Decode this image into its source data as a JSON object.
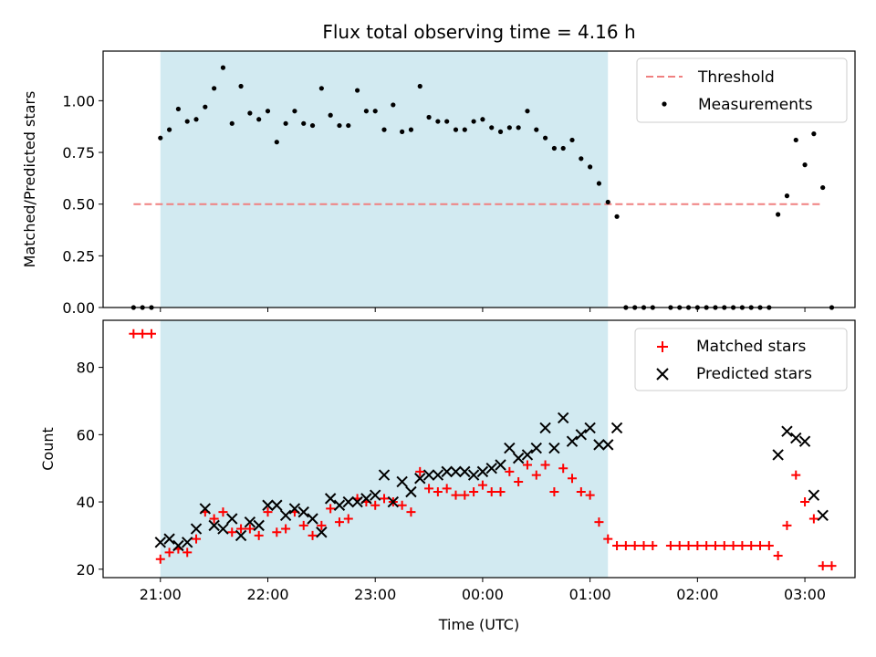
{
  "title": "Flux total observing time = 4.16 h",
  "colors": {
    "shade": "#add8e6",
    "threshold": "#f08080",
    "measurement": "#000000",
    "matched": "#ff0000",
    "predicted": "#000000"
  },
  "chart_data": [
    {
      "type": "scatter",
      "panel": "top",
      "ylabel": "Matched/Predicted stars",
      "ylim": [
        0,
        1.24
      ],
      "yticks": [
        0,
        0.25,
        0.5,
        0.75,
        1.0
      ],
      "yticklabels": [
        "0.00",
        "0.25",
        "0.50",
        "0.75",
        "1.00"
      ],
      "xlim": [
        "20:28",
        "03:28"
      ],
      "shaded_span": [
        "21:00",
        "01:10"
      ],
      "legend": [
        "Threshold",
        "Measurements"
      ],
      "legend_position": "upper right",
      "threshold": {
        "name": "Threshold",
        "y": 0.5,
        "x": [
          "20:45",
          "03:10"
        ]
      },
      "series": [
        {
          "name": "Measurements",
          "points": [
            [
              "20:45",
              0.0
            ],
            [
              "20:50",
              0.0
            ],
            [
              "20:55",
              0.0
            ],
            [
              "21:00",
              0.82
            ],
            [
              "21:05",
              0.86
            ],
            [
              "21:10",
              0.96
            ],
            [
              "21:15",
              0.9
            ],
            [
              "21:20",
              0.91
            ],
            [
              "21:25",
              0.97
            ],
            [
              "21:30",
              1.06
            ],
            [
              "21:35",
              1.16
            ],
            [
              "21:40",
              0.89
            ],
            [
              "21:45",
              1.07
            ],
            [
              "21:50",
              0.94
            ],
            [
              "21:55",
              0.91
            ],
            [
              "22:00",
              0.95
            ],
            [
              "22:05",
              0.8
            ],
            [
              "22:10",
              0.89
            ],
            [
              "22:15",
              0.95
            ],
            [
              "22:20",
              0.89
            ],
            [
              "22:25",
              0.88
            ],
            [
              "22:30",
              1.06
            ],
            [
              "22:35",
              0.93
            ],
            [
              "22:40",
              0.88
            ],
            [
              "22:45",
              0.88
            ],
            [
              "22:50",
              1.05
            ],
            [
              "22:55",
              0.95
            ],
            [
              "23:00",
              0.95
            ],
            [
              "23:05",
              0.86
            ],
            [
              "23:10",
              0.98
            ],
            [
              "23:15",
              0.85
            ],
            [
              "23:20",
              0.86
            ],
            [
              "23:25",
              1.07
            ],
            [
              "23:30",
              0.92
            ],
            [
              "23:35",
              0.9
            ],
            [
              "23:40",
              0.9
            ],
            [
              "23:45",
              0.86
            ],
            [
              "23:50",
              0.86
            ],
            [
              "23:55",
              0.9
            ],
            [
              "00:00",
              0.91
            ],
            [
              "00:05",
              0.87
            ],
            [
              "00:10",
              0.85
            ],
            [
              "00:15",
              0.87
            ],
            [
              "00:20",
              0.87
            ],
            [
              "00:25",
              0.95
            ],
            [
              "00:30",
              0.86
            ],
            [
              "00:35",
              0.82
            ],
            [
              "00:40",
              0.77
            ],
            [
              "00:45",
              0.77
            ],
            [
              "00:50",
              0.81
            ],
            [
              "00:55",
              0.72
            ],
            [
              "01:00",
              0.68
            ],
            [
              "01:05",
              0.6
            ],
            [
              "01:10",
              0.51
            ],
            [
              "01:15",
              0.44
            ],
            [
              "01:20",
              0.0
            ],
            [
              "01:25",
              0.0
            ],
            [
              "01:30",
              0.0
            ],
            [
              "01:35",
              0.0
            ],
            [
              "01:45",
              0.0
            ],
            [
              "01:50",
              0.0
            ],
            [
              "01:55",
              0.0
            ],
            [
              "02:00",
              0.0
            ],
            [
              "02:05",
              0.0
            ],
            [
              "02:10",
              0.0
            ],
            [
              "02:15",
              0.0
            ],
            [
              "02:20",
              0.0
            ],
            [
              "02:25",
              0.0
            ],
            [
              "02:30",
              0.0
            ],
            [
              "02:35",
              0.0
            ],
            [
              "02:40",
              0.0
            ],
            [
              "02:45",
              0.45
            ],
            [
              "02:50",
              0.54
            ],
            [
              "02:55",
              0.81
            ],
            [
              "03:00",
              0.69
            ],
            [
              "03:05",
              0.84
            ],
            [
              "03:10",
              0.58
            ],
            [
              "03:15",
              0.0
            ]
          ]
        }
      ]
    },
    {
      "type": "scatter",
      "panel": "bottom",
      "ylabel": "Count",
      "xlabel": "Time (UTC)",
      "ylim": [
        17.5,
        94
      ],
      "yticks": [
        20,
        40,
        60,
        80
      ],
      "yticklabels": [
        "20",
        "40",
        "60",
        "80"
      ],
      "xlim": [
        "20:28",
        "03:28"
      ],
      "xticks": [
        "21:00",
        "22:00",
        "23:00",
        "00:00",
        "01:00",
        "02:00",
        "03:00"
      ],
      "shaded_span": [
        "21:00",
        "01:10"
      ],
      "legend": [
        "Matched stars",
        "Predicted stars"
      ],
      "legend_position": "upper right",
      "series": [
        {
          "name": "Matched stars",
          "marker": "plus",
          "points": [
            [
              "20:45",
              90
            ],
            [
              "20:50",
              90
            ],
            [
              "20:55",
              90
            ],
            [
              "21:00",
              23
            ],
            [
              "21:05",
              25
            ],
            [
              "21:10",
              26
            ],
            [
              "21:15",
              25
            ],
            [
              "21:20",
              29
            ],
            [
              "21:25",
              37
            ],
            [
              "21:30",
              35
            ],
            [
              "21:35",
              37
            ],
            [
              "21:40",
              31
            ],
            [
              "21:45",
              32
            ],
            [
              "21:50",
              32
            ],
            [
              "21:55",
              30
            ],
            [
              "22:00",
              37
            ],
            [
              "22:05",
              31
            ],
            [
              "22:10",
              32
            ],
            [
              "22:15",
              37
            ],
            [
              "22:20",
              33
            ],
            [
              "22:25",
              30
            ],
            [
              "22:30",
              33
            ],
            [
              "22:35",
              38
            ],
            [
              "22:40",
              34
            ],
            [
              "22:45",
              35
            ],
            [
              "22:50",
              41
            ],
            [
              "22:55",
              40
            ],
            [
              "23:00",
              39
            ],
            [
              "23:05",
              41
            ],
            [
              "23:10",
              40
            ],
            [
              "23:15",
              39
            ],
            [
              "23:20",
              37
            ],
            [
              "23:25",
              49
            ],
            [
              "23:30",
              44
            ],
            [
              "23:35",
              43
            ],
            [
              "23:40",
              44
            ],
            [
              "23:45",
              42
            ],
            [
              "23:50",
              42
            ],
            [
              "23:55",
              43
            ],
            [
              "00:00",
              45
            ],
            [
              "00:05",
              43
            ],
            [
              "00:10",
              43
            ],
            [
              "00:15",
              49
            ],
            [
              "00:20",
              46
            ],
            [
              "00:25",
              51
            ],
            [
              "00:30",
              48
            ],
            [
              "00:35",
              51
            ],
            [
              "00:40",
              43
            ],
            [
              "00:45",
              50
            ],
            [
              "00:50",
              47
            ],
            [
              "00:55",
              43
            ],
            [
              "01:00",
              42
            ],
            [
              "01:05",
              34
            ],
            [
              "01:10",
              29
            ],
            [
              "01:15",
              27
            ],
            [
              "01:20",
              27
            ],
            [
              "01:25",
              27
            ],
            [
              "01:30",
              27
            ],
            [
              "01:35",
              27
            ],
            [
              "01:45",
              27
            ],
            [
              "01:50",
              27
            ],
            [
              "01:55",
              27
            ],
            [
              "02:00",
              27
            ],
            [
              "02:05",
              27
            ],
            [
              "02:10",
              27
            ],
            [
              "02:15",
              27
            ],
            [
              "02:20",
              27
            ],
            [
              "02:25",
              27
            ],
            [
              "02:30",
              27
            ],
            [
              "02:35",
              27
            ],
            [
              "02:40",
              27
            ],
            [
              "02:45",
              24
            ],
            [
              "02:50",
              33
            ],
            [
              "02:55",
              48
            ],
            [
              "03:00",
              40
            ],
            [
              "03:05",
              35
            ],
            [
              "03:10",
              21
            ],
            [
              "03:15",
              21
            ]
          ]
        },
        {
          "name": "Predicted stars",
          "marker": "x",
          "points": [
            [
              "21:00",
              28
            ],
            [
              "21:05",
              29
            ],
            [
              "21:10",
              27
            ],
            [
              "21:15",
              28
            ],
            [
              "21:20",
              32
            ],
            [
              "21:25",
              38
            ],
            [
              "21:30",
              33
            ],
            [
              "21:35",
              32
            ],
            [
              "21:40",
              35
            ],
            [
              "21:45",
              30
            ],
            [
              "21:50",
              34
            ],
            [
              "21:55",
              33
            ],
            [
              "22:00",
              39
            ],
            [
              "22:05",
              39
            ],
            [
              "22:10",
              36
            ],
            [
              "22:15",
              38
            ],
            [
              "22:20",
              37
            ],
            [
              "22:25",
              35
            ],
            [
              "22:30",
              31
            ],
            [
              "22:35",
              41
            ],
            [
              "22:40",
              39
            ],
            [
              "22:45",
              40
            ],
            [
              "22:50",
              40
            ],
            [
              "22:55",
              41
            ],
            [
              "23:00",
              42
            ],
            [
              "23:05",
              48
            ],
            [
              "23:10",
              40
            ],
            [
              "23:15",
              46
            ],
            [
              "23:20",
              43
            ],
            [
              "23:25",
              47
            ],
            [
              "23:30",
              48
            ],
            [
              "23:35",
              48
            ],
            [
              "23:40",
              49
            ],
            [
              "23:45",
              49
            ],
            [
              "23:50",
              49
            ],
            [
              "23:55",
              48
            ],
            [
              "00:00",
              49
            ],
            [
              "00:05",
              50
            ],
            [
              "00:10",
              51
            ],
            [
              "00:15",
              56
            ],
            [
              "00:20",
              53
            ],
            [
              "00:25",
              54
            ],
            [
              "00:30",
              56
            ],
            [
              "00:35",
              62
            ],
            [
              "00:40",
              56
            ],
            [
              "00:45",
              65
            ],
            [
              "00:50",
              58
            ],
            [
              "00:55",
              60
            ],
            [
              "01:00",
              62
            ],
            [
              "01:05",
              57
            ],
            [
              "01:10",
              57
            ],
            [
              "01:15",
              62
            ],
            [
              "02:45",
              54
            ],
            [
              "02:50",
              61
            ],
            [
              "02:55",
              59
            ],
            [
              "03:00",
              58
            ],
            [
              "03:05",
              42
            ],
            [
              "03:10",
              36
            ]
          ]
        }
      ]
    }
  ]
}
